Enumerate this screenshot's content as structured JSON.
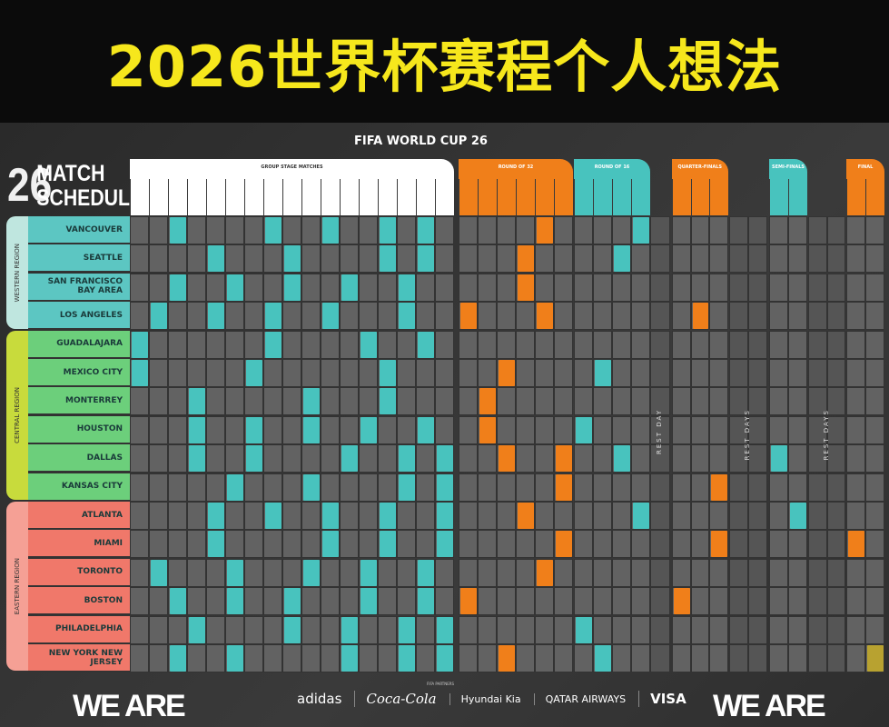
{
  "title": "2026世界杯赛程个人想法",
  "brand": "FIFA WORLD CUP 26",
  "logo": {
    "number": "26",
    "line1": "MATCH",
    "line2": "SCHEDULE"
  },
  "colors": {
    "title": "#f6e71c",
    "group": "#48c3be",
    "knockout_orange": "#f07f1a",
    "final_gold": "#b8a230",
    "western": "#bfe6df",
    "central": "#c8db3c",
    "eastern": "#f5a095",
    "western_city": "#5cc6c2",
    "central_city": "#6ccf7b",
    "eastern_city": "#f0786a"
  },
  "stages": [
    {
      "label": "GROUP STAGE MATCHES",
      "color": "#ffffff"
    },
    {
      "label": "ROUND OF 32",
      "color": "#f07f1a"
    },
    {
      "label": "ROUND OF 16",
      "color": "#48c3be"
    },
    {
      "label": "QUARTER-FINALS",
      "color": "#f07f1a"
    },
    {
      "label": "SEMI-FINALS",
      "color": "#48c3be"
    },
    {
      "label": "FINAL",
      "color": "#f07f1a"
    }
  ],
  "rest_labels": [
    "REST DAY",
    "REST DAYS",
    "REST DAYS"
  ],
  "regions": [
    {
      "label": "WESTERN REGION",
      "color": "#bfe6df",
      "city_color": "#5cc6c2",
      "cities": [
        {
          "name": "VANCOUVER",
          "matches": [
            [
              "g",
              2
            ],
            [
              "g",
              7
            ],
            [
              "g",
              10
            ],
            [
              "g",
              13
            ],
            [
              "g",
              15
            ],
            [
              "r32",
              4
            ],
            [
              "r16",
              3
            ]
          ]
        },
        {
          "name": "SEATTLE",
          "matches": [
            [
              "g",
              4
            ],
            [
              "g",
              8
            ],
            [
              "g",
              13
            ],
            [
              "g",
              15
            ],
            [
              "r32",
              3
            ],
            [
              "r16",
              2
            ]
          ]
        },
        {
          "name": "SAN FRANCISCO BAY AREA",
          "matches": [
            [
              "g",
              2
            ],
            [
              "g",
              5
            ],
            [
              "g",
              8
            ],
            [
              "g",
              11
            ],
            [
              "g",
              14
            ],
            [
              "r32",
              3
            ]
          ]
        },
        {
          "name": "LOS ANGELES",
          "matches": [
            [
              "g",
              1
            ],
            [
              "g",
              4
            ],
            [
              "g",
              7
            ],
            [
              "g",
              10
            ],
            [
              "g",
              14
            ],
            [
              "r32",
              0
            ],
            [
              "r32",
              4
            ],
            [
              "qf",
              1
            ]
          ]
        }
      ]
    },
    {
      "label": "CENTRAL REGION",
      "color": "#c8db3c",
      "city_color": "#6ccf7b",
      "cities": [
        {
          "name": "GUADALAJARA",
          "matches": [
            [
              "g",
              0
            ],
            [
              "g",
              7
            ],
            [
              "g",
              12
            ],
            [
              "g",
              15
            ]
          ]
        },
        {
          "name": "MEXICO CITY",
          "matches": [
            [
              "g",
              0
            ],
            [
              "g",
              6
            ],
            [
              "g",
              13
            ],
            [
              "r32",
              2
            ],
            [
              "r16",
              1
            ]
          ]
        },
        {
          "name": "MONTERREY",
          "matches": [
            [
              "g",
              3
            ],
            [
              "g",
              9
            ],
            [
              "g",
              13
            ],
            [
              "r32",
              1
            ]
          ]
        },
        {
          "name": "HOUSTON",
          "matches": [
            [
              "g",
              3
            ],
            [
              "g",
              6
            ],
            [
              "g",
              9
            ],
            [
              "g",
              12
            ],
            [
              "g",
              15
            ],
            [
              "r32",
              1
            ],
            [
              "r16",
              0
            ]
          ]
        },
        {
          "name": "DALLAS",
          "matches": [
            [
              "g",
              3
            ],
            [
              "g",
              6
            ],
            [
              "g",
              11
            ],
            [
              "g",
              14
            ],
            [
              "g",
              16
            ],
            [
              "r32",
              2
            ],
            [
              "r32",
              5
            ],
            [
              "r16",
              2
            ],
            [
              "sf",
              0
            ]
          ]
        },
        {
          "name": "KANSAS CITY",
          "matches": [
            [
              "g",
              5
            ],
            [
              "g",
              9
            ],
            [
              "g",
              14
            ],
            [
              "g",
              16
            ],
            [
              "r32",
              5
            ],
            [
              "qf",
              2
            ]
          ]
        }
      ]
    },
    {
      "label": "EASTERN REGION",
      "color": "#f5a095",
      "city_color": "#f0786a",
      "cities": [
        {
          "name": "ATLANTA",
          "matches": [
            [
              "g",
              4
            ],
            [
              "g",
              7
            ],
            [
              "g",
              10
            ],
            [
              "g",
              13
            ],
            [
              "g",
              16
            ],
            [
              "r32",
              3
            ],
            [
              "r16",
              3
            ],
            [
              "sf",
              1
            ]
          ]
        },
        {
          "name": "MIAMI",
          "matches": [
            [
              "g",
              4
            ],
            [
              "g",
              10
            ],
            [
              "g",
              13
            ],
            [
              "g",
              16
            ],
            [
              "r32",
              5
            ],
            [
              "qf",
              2
            ],
            [
              "final",
              0
            ]
          ]
        },
        {
          "name": "TORONTO",
          "matches": [
            [
              "g",
              1
            ],
            [
              "g",
              5
            ],
            [
              "g",
              9
            ],
            [
              "g",
              12
            ],
            [
              "g",
              15
            ],
            [
              "r32",
              4
            ]
          ]
        },
        {
          "name": "BOSTON",
          "matches": [
            [
              "g",
              2
            ],
            [
              "g",
              5
            ],
            [
              "g",
              8
            ],
            [
              "g",
              12
            ],
            [
              "g",
              15
            ],
            [
              "r32",
              0
            ],
            [
              "qf",
              0
            ]
          ]
        },
        {
          "name": "PHILADELPHIA",
          "matches": [
            [
              "g",
              3
            ],
            [
              "g",
              8
            ],
            [
              "g",
              11
            ],
            [
              "g",
              14
            ],
            [
              "g",
              16
            ],
            [
              "r16",
              0
            ]
          ]
        },
        {
          "name": "NEW YORK NEW JERSEY",
          "matches": [
            [
              "g",
              2
            ],
            [
              "g",
              5
            ],
            [
              "g",
              11
            ],
            [
              "g",
              14
            ],
            [
              "g",
              16
            ],
            [
              "r32",
              2
            ],
            [
              "r16",
              1
            ],
            [
              "final",
              1
            ]
          ]
        }
      ]
    }
  ],
  "footer": {
    "we_are": "WE ARE",
    "partners_label": "FIFA PARTNERS",
    "sponsors": [
      "adidas",
      "Coca-Cola",
      "Hyundai Kia",
      "QATAR AIRWAYS",
      "VISA"
    ]
  }
}
